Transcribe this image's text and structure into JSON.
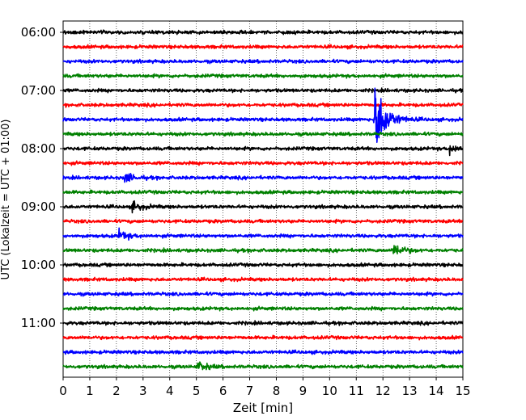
{
  "chart_data": {
    "type": "line",
    "title": "",
    "xlabel": "Zeit  [min]",
    "ylabel": "UTC (Lokalzeit = UTC + 01:00)",
    "xlim": [
      0,
      15
    ],
    "x_ticks": [
      "0",
      "1",
      "2",
      "3",
      "4",
      "5",
      "6",
      "7",
      "8",
      "9",
      "10",
      "11",
      "12",
      "13",
      "14",
      "15"
    ],
    "y_tick_labels": [
      "06:00",
      "07:00",
      "08:00",
      "09:00",
      "10:00",
      "11:00"
    ],
    "grid": true,
    "trace_interval_minutes": 15,
    "trace_color_cycle": [
      "#000000",
      "#ff0000",
      "#0000ff",
      "#008000"
    ],
    "traces": [
      {
        "start": "06:00",
        "events": []
      },
      {
        "start": "06:15",
        "events": []
      },
      {
        "start": "06:30",
        "events": []
      },
      {
        "start": "06:45",
        "events": []
      },
      {
        "start": "07:00",
        "events": []
      },
      {
        "start": "07:15",
        "events": []
      },
      {
        "start": "07:30",
        "events": [
          {
            "t": 11.7,
            "amplitude": "strong"
          }
        ]
      },
      {
        "start": "07:45",
        "events": []
      },
      {
        "start": "08:00",
        "events": [
          {
            "t": 14.5,
            "amplitude": "weak"
          }
        ]
      },
      {
        "start": "08:15",
        "events": []
      },
      {
        "start": "08:30",
        "events": [
          {
            "t": 2.3,
            "amplitude": "weak"
          }
        ]
      },
      {
        "start": "08:45",
        "events": []
      },
      {
        "start": "09:00",
        "events": [
          {
            "t": 2.6,
            "amplitude": "weak"
          }
        ]
      },
      {
        "start": "09:15",
        "events": []
      },
      {
        "start": "09:30",
        "events": [
          {
            "t": 2.1,
            "amplitude": "weak"
          }
        ]
      },
      {
        "start": "09:45",
        "events": [
          {
            "t": 12.4,
            "amplitude": "moderate"
          }
        ]
      },
      {
        "start": "10:00",
        "events": []
      },
      {
        "start": "10:15",
        "events": []
      },
      {
        "start": "10:30",
        "events": []
      },
      {
        "start": "10:45",
        "events": []
      },
      {
        "start": "11:00",
        "events": []
      },
      {
        "start": "11:15",
        "events": []
      },
      {
        "start": "11:30",
        "events": []
      },
      {
        "start": "11:45",
        "events": [
          {
            "t": 5.05,
            "amplitude": "weak"
          }
        ]
      }
    ]
  }
}
